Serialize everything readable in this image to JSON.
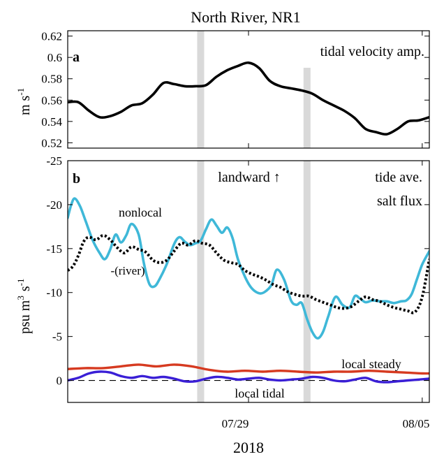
{
  "figure": {
    "title": "North River, NR1",
    "xlabel": "2018",
    "x_ticks": [
      "07/29",
      "08/05"
    ]
  },
  "colors": {
    "nonlocal": "#3fb8d8",
    "river": "#000000",
    "local_steady": "#d63a20",
    "local_tidal": "#3a1fd6",
    "velocity": "#000000",
    "shade": "#d9d9d9",
    "zero_line": "#000000"
  },
  "chart_data": [
    {
      "type": "line",
      "panel_label": "a",
      "annotation": "tidal velocity amp.",
      "ylabel_main": "m s",
      "ylabel_exp": "-1",
      "xlim": [
        0,
        10.2
      ],
      "ylim": [
        0.515,
        0.625
      ],
      "yticks": [
        "0.62",
        "0.6",
        "0.58",
        "0.56",
        "0.54",
        "0.52"
      ],
      "ytick_values": [
        0.62,
        0.6,
        0.58,
        0.56,
        0.54,
        0.52
      ],
      "shaded_x": [
        3.75,
        6.75
      ],
      "series": [
        {
          "key": "velocity",
          "x": [
            0,
            0.3,
            0.6,
            0.9,
            1.2,
            1.5,
            1.8,
            2.1,
            2.4,
            2.7,
            3.0,
            3.3,
            3.6,
            3.9,
            4.2,
            4.5,
            4.8,
            5.1,
            5.4,
            5.7,
            6.0,
            6.3,
            6.6,
            6.9,
            7.2,
            7.5,
            7.8,
            8.1,
            8.4,
            8.7,
            9.0,
            9.3,
            9.6,
            9.9,
            10.2
          ],
          "values": [
            0.558,
            0.558,
            0.55,
            0.544,
            0.545,
            0.549,
            0.555,
            0.557,
            0.565,
            0.576,
            0.575,
            0.573,
            0.573,
            0.574,
            0.582,
            0.588,
            0.592,
            0.595,
            0.59,
            0.578,
            0.573,
            0.571,
            0.569,
            0.566,
            0.56,
            0.555,
            0.55,
            0.543,
            0.533,
            0.53,
            0.528,
            0.533,
            0.54,
            0.541,
            0.544
          ]
        }
      ]
    },
    {
      "type": "line",
      "panel_label": "b",
      "annotation_flux_1": "tide ave.",
      "annotation_flux_2": "salt flux",
      "annotation_landward": "landward ↑",
      "ylabel_main": "psu m",
      "ylabel_exp1": "3",
      "ylabel_mid": "s",
      "ylabel_exp2": "-1",
      "xlim": [
        0,
        10.2
      ],
      "ylim": [
        2.5,
        -25
      ],
      "yticks": [
        "-25",
        "-20",
        "-15",
        "-10",
        "-5",
        "0"
      ],
      "ytick_values": [
        -25,
        -20,
        -15,
        -10,
        -5,
        0
      ],
      "shaded_x": [
        3.75,
        6.75
      ],
      "series": [
        {
          "key": "nonlocal",
          "name": "nonlocal",
          "x": [
            0,
            0.1,
            0.2,
            0.35,
            0.5,
            0.7,
            0.9,
            1.05,
            1.2,
            1.35,
            1.5,
            1.65,
            1.8,
            2.0,
            2.15,
            2.3,
            2.45,
            2.6,
            2.8,
            3.0,
            3.15,
            3.3,
            3.45,
            3.6,
            3.75,
            3.9,
            4.05,
            4.2,
            4.35,
            4.5,
            4.65,
            4.8,
            5.0,
            5.15,
            5.3,
            5.45,
            5.6,
            5.75,
            5.9,
            6.1,
            6.3,
            6.45,
            6.6,
            6.75,
            6.9,
            7.05,
            7.2,
            7.35,
            7.55,
            7.75,
            7.95,
            8.1,
            8.25,
            8.4,
            8.6,
            8.8,
            9.0,
            9.2,
            9.4,
            9.55,
            9.7,
            9.85,
            10.0,
            10.2
          ],
          "values": [
            -18.5,
            -20.0,
            -20.7,
            -19.8,
            -18.2,
            -16.0,
            -14.5,
            -13.8,
            -14.9,
            -16.6,
            -15.7,
            -16.5,
            -17.8,
            -16.6,
            -13.3,
            -11.0,
            -10.7,
            -11.6,
            -13.3,
            -15.5,
            -16.3,
            -15.8,
            -15.4,
            -15.6,
            -15.9,
            -17.2,
            -18.3,
            -17.6,
            -16.8,
            -17.4,
            -16.2,
            -13.8,
            -11.8,
            -10.7,
            -10.1,
            -9.9,
            -10.2,
            -10.9,
            -12.6,
            -11.5,
            -9.1,
            -8.6,
            -8.8,
            -7.0,
            -5.5,
            -4.8,
            -5.5,
            -7.3,
            -9.5,
            -8.6,
            -8.3,
            -9.6,
            -9.3,
            -8.9,
            -9.1,
            -9.0,
            -9.0,
            -8.8,
            -9.0,
            -9.1,
            -9.8,
            -11.5,
            -13.2,
            -14.7
          ]
        },
        {
          "key": "river",
          "name": "-(river)",
          "x": [
            0,
            0.15,
            0.3,
            0.45,
            0.6,
            0.8,
            1.0,
            1.2,
            1.4,
            1.6,
            1.8,
            2.0,
            2.2,
            2.4,
            2.6,
            2.8,
            3.0,
            3.2,
            3.4,
            3.6,
            3.8,
            4.0,
            4.2,
            4.4,
            4.6,
            4.8,
            5.0,
            5.2,
            5.4,
            5.6,
            5.8,
            6.0,
            6.2,
            6.4,
            6.6,
            6.8,
            7.0,
            7.2,
            7.4,
            7.6,
            7.8,
            8.0,
            8.2,
            8.4,
            8.6,
            8.8,
            9.0,
            9.2,
            9.4,
            9.6,
            9.8,
            10.0,
            10.2
          ],
          "values": [
            -12.5,
            -13.0,
            -14.2,
            -15.8,
            -16.3,
            -16.0,
            -16.5,
            -16.0,
            -15.1,
            -14.5,
            -15.2,
            -14.9,
            -14.6,
            -13.7,
            -13.4,
            -13.7,
            -14.7,
            -15.6,
            -15.4,
            -15.9,
            -15.6,
            -15.4,
            -14.5,
            -13.7,
            -13.4,
            -13.2,
            -12.5,
            -12.1,
            -11.8,
            -11.4,
            -10.9,
            -10.6,
            -10.1,
            -9.8,
            -9.6,
            -9.6,
            -9.2,
            -8.9,
            -8.6,
            -8.3,
            -8.2,
            -8.4,
            -9.0,
            -9.5,
            -9.2,
            -9.0,
            -8.6,
            -8.3,
            -8.1,
            -7.9,
            -7.8,
            -9.5,
            -13.8
          ]
        },
        {
          "key": "local_steady",
          "name": "local steady",
          "x": [
            0,
            0.5,
            1.0,
            1.5,
            2.0,
            2.5,
            3.0,
            3.5,
            4.0,
            4.5,
            5.0,
            5.5,
            6.0,
            6.5,
            7.0,
            7.5,
            8.0,
            8.5,
            9.0,
            9.5,
            10.0,
            10.2
          ],
          "values": [
            -1.3,
            -1.4,
            -1.4,
            -1.6,
            -1.8,
            -1.6,
            -1.8,
            -1.6,
            -1.2,
            -1.0,
            -1.1,
            -1.0,
            -1.1,
            -1.0,
            -0.9,
            -1.0,
            -1.0,
            -1.1,
            -1.0,
            -0.9,
            -0.8,
            -0.8
          ]
        },
        {
          "key": "local_tidal",
          "name": "local tidal",
          "x": [
            0,
            0.3,
            0.6,
            0.9,
            1.2,
            1.5,
            1.8,
            2.1,
            2.4,
            2.7,
            3.0,
            3.3,
            3.6,
            3.9,
            4.2,
            4.5,
            4.8,
            5.1,
            5.4,
            5.7,
            6.0,
            6.3,
            6.6,
            6.9,
            7.2,
            7.5,
            7.8,
            8.1,
            8.4,
            8.7,
            9.0,
            9.3,
            9.6,
            9.9,
            10.2
          ],
          "values": [
            0.0,
            -0.3,
            -0.8,
            -1.0,
            -0.9,
            -0.5,
            -0.3,
            -0.5,
            -0.3,
            -0.4,
            -0.2,
            0.1,
            0.1,
            -0.2,
            -0.4,
            -0.3,
            -0.1,
            -0.2,
            -0.3,
            -0.1,
            0.0,
            -0.1,
            -0.2,
            -0.4,
            -0.3,
            0.0,
            0.1,
            -0.1,
            -0.3,
            0.1,
            0.2,
            0.1,
            0.0,
            -0.1,
            -0.2
          ]
        }
      ]
    }
  ]
}
